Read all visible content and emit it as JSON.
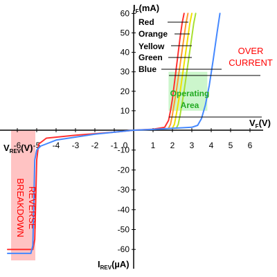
{
  "chart_data": {
    "type": "line",
    "title": "",
    "axes": {
      "xlabel_forward": "V",
      "xlabel_forward_sub": "F",
      "xlabel_forward_unit": "(V)",
      "xlabel_reverse": "V",
      "xlabel_reverse_sub": "REV",
      "xlabel_reverse_unit": "(V)",
      "ylabel_forward": "I",
      "ylabel_forward_sub": "F",
      "ylabel_forward_unit": "(mA)",
      "ylabel_reverse": "I",
      "ylabel_reverse_sub": "REV",
      "ylabel_reverse_unit": "(µA)",
      "xlim": [
        -6.5,
        6.5
      ],
      "ylim": [
        -65,
        62
      ],
      "x_ticks": [
        "-6",
        "-5",
        "-4",
        "-3",
        "-2",
        "-1",
        "0",
        "1",
        "2",
        "3",
        "4",
        "5",
        "6"
      ],
      "x_tick_values": [
        -6,
        -5,
        -4,
        -3,
        -2,
        -1,
        0,
        1,
        2,
        3,
        4,
        5,
        6
      ],
      "y_ticks": [
        "60",
        "50",
        "40",
        "30",
        "20",
        "10",
        "-10",
        "-20",
        "-30",
        "-40",
        "-50",
        "-60"
      ],
      "y_tick_values": [
        60,
        50,
        40,
        30,
        20,
        10,
        -10,
        -20,
        -30,
        -40,
        -50,
        -60
      ]
    },
    "series": [
      {
        "name": "Red",
        "color": "#ff3030",
        "x": [
          -6.5,
          -5.2,
          -5.1,
          -5.0,
          -4.9,
          -4.5,
          -3.0,
          -1.0,
          0.0,
          1.0,
          1.6,
          1.8,
          1.9,
          2.0,
          2.1,
          2.2,
          2.3,
          2.4,
          2.5,
          2.6
        ],
        "y": [
          -60,
          -60,
          -55,
          -15,
          -7,
          -4,
          -2.5,
          -1,
          0,
          0.5,
          1.5,
          5,
          10,
          16,
          24,
          32,
          40,
          48,
          55,
          60
        ]
      },
      {
        "name": "Orange",
        "color": "#ff9a30",
        "x": [
          1.8,
          1.9,
          2.0,
          2.1,
          2.2,
          2.3,
          2.4,
          2.5,
          2.6,
          2.7,
          2.8
        ],
        "y": [
          1,
          3,
          8,
          14,
          20,
          27,
          34,
          41,
          48,
          55,
          60
        ]
      },
      {
        "name": "Yellow",
        "color": "#f0e000",
        "x": [
          2.0,
          2.1,
          2.2,
          2.3,
          2.4,
          2.5,
          2.6,
          2.7,
          2.8,
          2.9,
          3.0
        ],
        "y": [
          1,
          3,
          8,
          14,
          20,
          27,
          34,
          41,
          48,
          55,
          60
        ]
      },
      {
        "name": "Green",
        "color": "#a8e030",
        "x": [
          2.2,
          2.3,
          2.4,
          2.5,
          2.6,
          2.7,
          2.8,
          2.9,
          3.0,
          3.1,
          3.2
        ],
        "y": [
          1,
          3,
          8,
          14,
          20,
          27,
          34,
          41,
          48,
          55,
          60
        ]
      },
      {
        "name": "Blue",
        "color": "#4488ff",
        "x": [
          -6.5,
          -5.3,
          -5.2,
          -5.1,
          -5.0,
          -4.8,
          -4.0,
          -2.0,
          0.0,
          1.0,
          2.0,
          3.0,
          3.3,
          3.5,
          3.7,
          3.9,
          4.1,
          4.3,
          4.45
        ],
        "y": [
          -62,
          -62,
          -58,
          -15,
          -10,
          -8,
          -5,
          -2,
          0,
          0.4,
          1,
          1.5,
          2.5,
          6,
          13,
          23,
          36,
          50,
          60
        ]
      }
    ],
    "regions": [
      {
        "name": "Operating Area",
        "x": [
          1.8,
          3.8
        ],
        "y": [
          10,
          30
        ],
        "color": "#aaf0aa"
      },
      {
        "name": "Reverse Breakdown",
        "x": [
          -6.5,
          -5.2
        ],
        "y": [
          -65,
          0
        ],
        "color": "#ffaaaa"
      }
    ],
    "annotations": {
      "over_current": [
        "OVER",
        "CURRENT"
      ],
      "operating_area": [
        "Operating",
        "Area"
      ],
      "reverse_breakdown": [
        "REVERSE",
        "BREAKDOWN"
      ],
      "legend_labels": [
        "Red",
        "Orange",
        "Yellow",
        "Green",
        "Blue"
      ]
    },
    "grid": false
  }
}
